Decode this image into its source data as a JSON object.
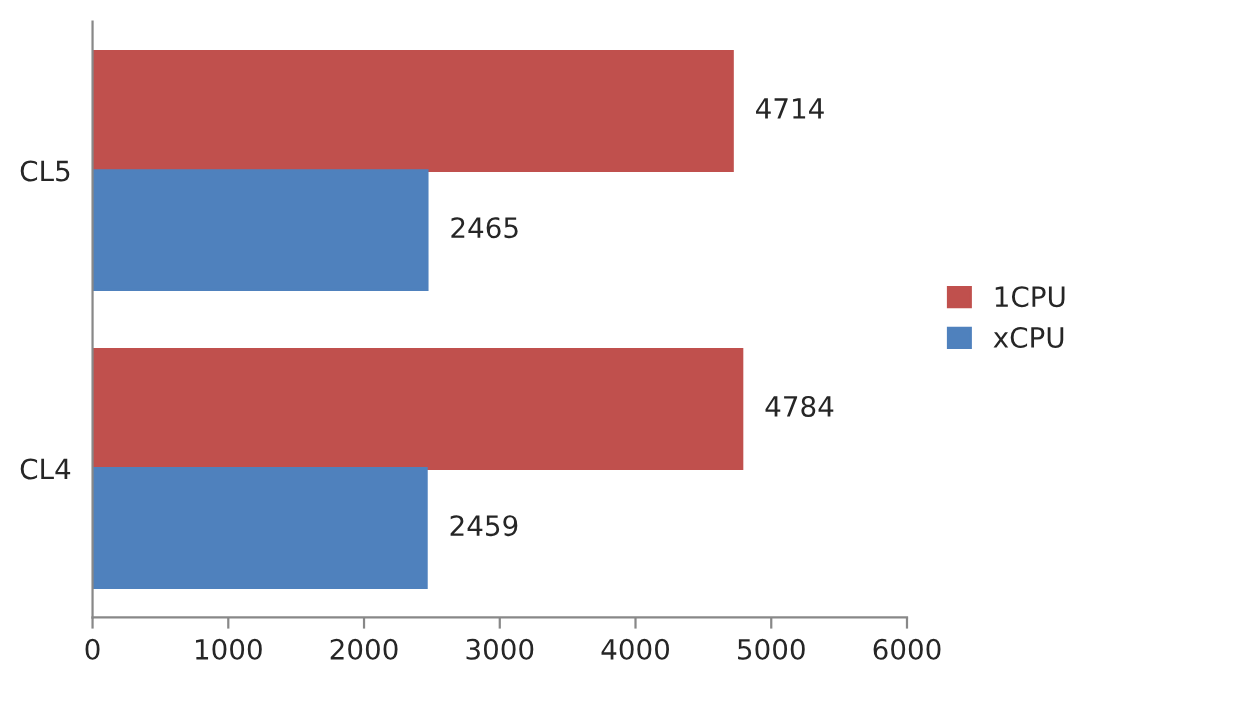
{
  "chart_data": {
    "type": "bar",
    "orientation": "horizontal",
    "categories": [
      "CL5",
      "CL4"
    ],
    "series": [
      {
        "name": "1CPU",
        "color": "#c0504d",
        "values": [
          4714,
          4784
        ]
      },
      {
        "name": "xCPU",
        "color": "#4f81bd",
        "values": [
          2465,
          2459
        ]
      }
    ],
    "xlim": [
      0,
      6000
    ],
    "xticks": [
      0,
      1000,
      2000,
      3000,
      4000,
      5000,
      6000
    ],
    "data_labels": true,
    "grid": false,
    "legend": "right"
  }
}
